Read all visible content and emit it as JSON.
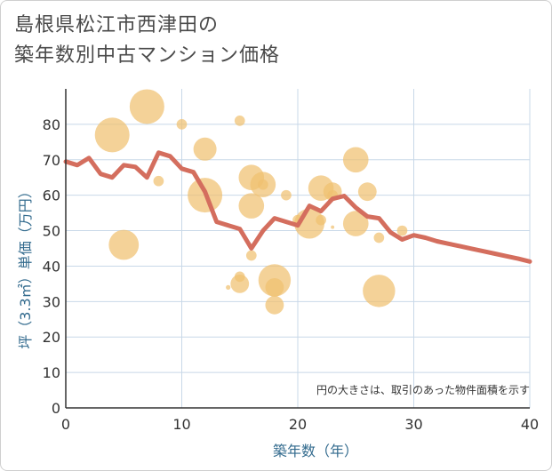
{
  "title_lines": [
    "島根県松江市西津田の",
    "築年数別中古マンション価格"
  ],
  "chart_data": {
    "type": "scatter+line",
    "title": "島根県松江市西津田の築年数別中古マンション価格",
    "xlabel": "築年数（年）",
    "ylabel": "坪（3.3㎡）単価（万円）",
    "xlim": [
      0,
      40
    ],
    "ylim": [
      0,
      90
    ],
    "xticks": [
      0,
      10,
      20,
      30,
      40
    ],
    "yticks": [
      0,
      10,
      20,
      30,
      40,
      50,
      60,
      70,
      80
    ],
    "grid": true,
    "note": "円の大きさは、取引のあった物件面積を示す",
    "colors": {
      "bubble": "#f0c070",
      "line": "#d46e5e",
      "grid": "#c8d8e8",
      "axis": "#333333"
    },
    "bubbles": [
      {
        "x": 4,
        "y": 77,
        "size": 3.0
      },
      {
        "x": 7,
        "y": 85,
        "size": 3.0
      },
      {
        "x": 5,
        "y": 46,
        "size": 2.6
      },
      {
        "x": 10,
        "y": 80,
        "size": 0.9
      },
      {
        "x": 8,
        "y": 64,
        "size": 0.9
      },
      {
        "x": 12,
        "y": 73,
        "size": 2.0
      },
      {
        "x": 12,
        "y": 60,
        "size": 3.0
      },
      {
        "x": 14,
        "y": 34,
        "size": 0.4
      },
      {
        "x": 15,
        "y": 81,
        "size": 0.9
      },
      {
        "x": 15,
        "y": 37,
        "size": 0.9
      },
      {
        "x": 15,
        "y": 35,
        "size": 1.6
      },
      {
        "x": 16,
        "y": 65,
        "size": 2.2
      },
      {
        "x": 16,
        "y": 57,
        "size": 2.2
      },
      {
        "x": 16,
        "y": 43,
        "size": 0.9
      },
      {
        "x": 17,
        "y": 63,
        "size": 2.2
      },
      {
        "x": 17,
        "y": 63,
        "size": 0.9
      },
      {
        "x": 18,
        "y": 36,
        "size": 2.8
      },
      {
        "x": 18,
        "y": 34,
        "size": 1.6
      },
      {
        "x": 18,
        "y": 29,
        "size": 1.6
      },
      {
        "x": 19,
        "y": 60,
        "size": 0.9
      },
      {
        "x": 20,
        "y": 53,
        "size": 0.9
      },
      {
        "x": 21,
        "y": 52,
        "size": 2.6
      },
      {
        "x": 22,
        "y": 62,
        "size": 2.2
      },
      {
        "x": 22,
        "y": 53,
        "size": 0.9
      },
      {
        "x": 23,
        "y": 61,
        "size": 1.6
      },
      {
        "x": 23,
        "y": 60,
        "size": 0.9
      },
      {
        "x": 23,
        "y": 51,
        "size": 0.3
      },
      {
        "x": 25,
        "y": 70,
        "size": 2.2
      },
      {
        "x": 25,
        "y": 52,
        "size": 2.2
      },
      {
        "x": 26,
        "y": 61,
        "size": 1.6
      },
      {
        "x": 27,
        "y": 48,
        "size": 0.9
      },
      {
        "x": 27,
        "y": 33,
        "size": 2.8
      },
      {
        "x": 29,
        "y": 50,
        "size": 0.9
      }
    ],
    "trend": {
      "x": [
        0,
        1,
        2,
        3,
        4,
        5,
        6,
        7,
        8,
        9,
        10,
        11,
        12,
        13,
        14,
        15,
        16,
        17,
        18,
        19,
        20,
        21,
        22,
        23,
        24,
        25,
        26,
        27,
        28,
        29,
        30,
        31,
        32,
        33,
        34,
        35,
        36,
        37,
        38,
        39,
        40
      ],
      "y": [
        69.5,
        68.5,
        70.5,
        66,
        65,
        68.5,
        68,
        65,
        72,
        71,
        67.5,
        66.5,
        61,
        52.5,
        51.5,
        50.5,
        45,
        50,
        53.5,
        52.5,
        51.5,
        57,
        55.5,
        59,
        59.8,
        56.5,
        54,
        53.5,
        49.5,
        47.5,
        48.7,
        48,
        47,
        46.3,
        45.6,
        44.9,
        44.2,
        43.5,
        42.8,
        42.1,
        41.3
      ]
    }
  }
}
